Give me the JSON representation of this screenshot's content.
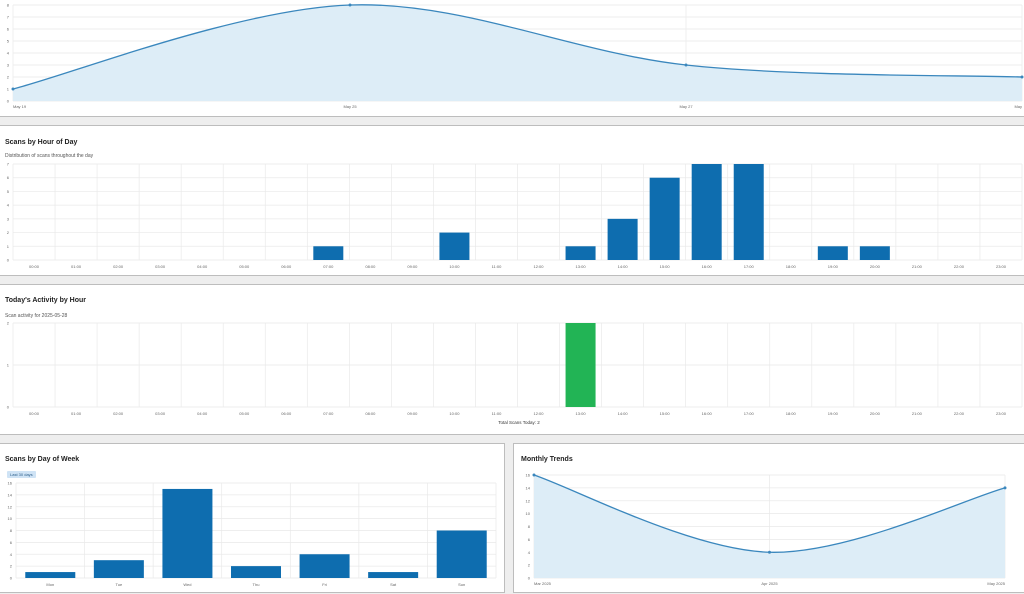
{
  "colors": {
    "line": "#3a87bd",
    "fill": "#ddedf7",
    "bar": "#0e6daf",
    "green": "#22b455",
    "grid": "#e9e9e9"
  },
  "chart_data": [
    {
      "type": "area",
      "title": "",
      "x": [
        "May 19",
        "May 25",
        "May 27",
        "May"
      ],
      "values": [
        1,
        8,
        3,
        2
      ],
      "ylim": [
        0,
        8
      ],
      "yticks": [
        "0",
        "1",
        "2",
        "3",
        "4",
        "5",
        "6",
        "7",
        "8"
      ],
      "grid": true
    },
    {
      "type": "bar",
      "title": "Scans by Hour of Day",
      "subtitle": "Distribution of scans throughout the day",
      "categories": [
        "00:00",
        "01:00",
        "02:00",
        "03:00",
        "04:00",
        "05:00",
        "06:00",
        "07:00",
        "08:00",
        "09:00",
        "10:00",
        "11:00",
        "12:00",
        "13:00",
        "14:00",
        "15:00",
        "16:00",
        "17:00",
        "18:00",
        "19:00",
        "20:00",
        "21:00",
        "22:00",
        "23:00"
      ],
      "values": [
        0,
        0,
        0,
        0,
        0,
        0,
        0,
        1,
        0,
        0,
        2,
        0,
        0,
        1,
        3,
        6,
        7,
        7,
        0,
        1,
        1,
        0,
        0,
        0
      ],
      "ylim": [
        0,
        7
      ],
      "yticks": [
        "0",
        "1",
        "2",
        "3",
        "4",
        "5",
        "6",
        "7"
      ],
      "grid": true
    },
    {
      "type": "bar",
      "title": "Today's Activity by Hour",
      "subtitle": "Scan activity for 2025-05-28",
      "categories": [
        "00:00",
        "01:00",
        "02:00",
        "03:00",
        "04:00",
        "05:00",
        "06:00",
        "07:00",
        "08:00",
        "09:00",
        "10:00",
        "11:00",
        "12:00",
        "13:00",
        "14:00",
        "15:00",
        "16:00",
        "17:00",
        "18:00",
        "19:00",
        "20:00",
        "21:00",
        "22:00",
        "23:00"
      ],
      "values": [
        0,
        0,
        0,
        0,
        0,
        0,
        0,
        0,
        0,
        0,
        0,
        0,
        0,
        2,
        0,
        0,
        0,
        0,
        0,
        0,
        0,
        0,
        0,
        0
      ],
      "ylim": [
        0,
        2
      ],
      "yticks": [
        "0",
        "1",
        "2"
      ],
      "xlabel": "Total Scans Today: 2",
      "grid": true
    },
    {
      "type": "bar",
      "title": "Scans by Day of Week",
      "badge": "Last 30 days",
      "categories": [
        "Mon",
        "Tue",
        "Wed",
        "Thu",
        "Fri",
        "Sat",
        "Sun"
      ],
      "values": [
        1,
        3,
        15,
        2,
        4,
        1,
        8
      ],
      "ylim": [
        0,
        16
      ],
      "yticks": [
        "0",
        "2",
        "4",
        "6",
        "8",
        "10",
        "12",
        "14",
        "16"
      ],
      "grid": true
    },
    {
      "type": "area",
      "title": "Monthly Trends",
      "x": [
        "Mar 2025",
        "Apr 2025",
        "May 2025"
      ],
      "values": [
        16,
        4,
        14
      ],
      "ylim": [
        0,
        16
      ],
      "yticks": [
        "0",
        "2",
        "4",
        "6",
        "8",
        "10",
        "12",
        "14",
        "16"
      ],
      "grid": true
    }
  ]
}
